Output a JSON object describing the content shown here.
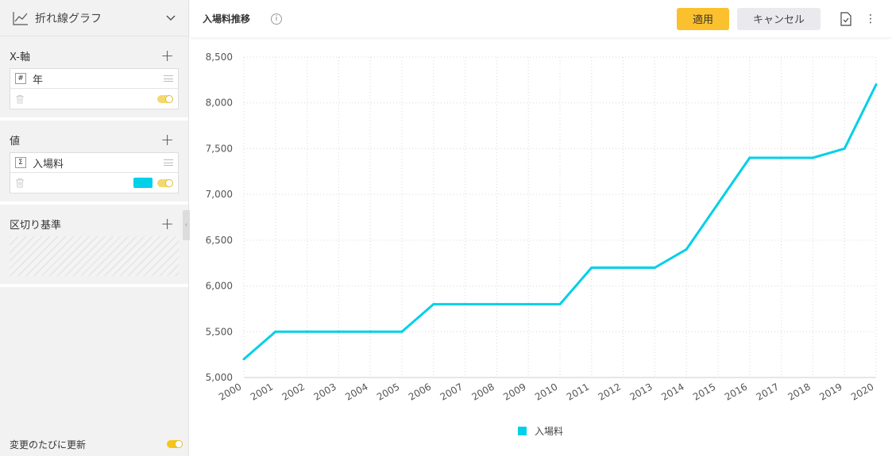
{
  "sidebar": {
    "chart_type": {
      "label": "折れ線グラフ",
      "icon": "line-chart-icon"
    },
    "x_axis": {
      "title": "X-軸",
      "field": {
        "badge": "#",
        "name": "年"
      }
    },
    "values": {
      "title": "値",
      "field": {
        "badge": "Σ",
        "name": "入場料",
        "color": "#00d0e8"
      }
    },
    "breakdown": {
      "title": "区切り基準"
    },
    "auto_update_label": "変更のたびに更新"
  },
  "topbar": {
    "title": "入場料推移",
    "apply_label": "適用",
    "cancel_label": "キャンセル"
  },
  "colors": {
    "accent": "#fbc02d",
    "series": "#00d0e8"
  },
  "chart_data": {
    "type": "line",
    "x": [
      "2000",
      "2001",
      "2002",
      "2003",
      "2004",
      "2005",
      "2006",
      "2007",
      "2008",
      "2009",
      "2010",
      "2011",
      "2012",
      "2013",
      "2014",
      "2015",
      "2016",
      "2017",
      "2018",
      "2019",
      "2020"
    ],
    "series": [
      {
        "name": "入場料",
        "values": [
          5200,
          5500,
          5500,
          5500,
          5500,
          5500,
          5800,
          5800,
          5800,
          5800,
          5800,
          6200,
          6200,
          6200,
          6400,
          6900,
          7400,
          7400,
          7400,
          7500,
          8200
        ]
      }
    ],
    "ylim": [
      5000,
      8500
    ],
    "yticks": [
      5000,
      5500,
      6000,
      6500,
      7000,
      7500,
      8000,
      8500
    ],
    "ytick_labels": [
      "5,000",
      "5,500",
      "6,000",
      "6,500",
      "7,000",
      "7,500",
      "8,000",
      "8,500"
    ],
    "grid": true,
    "legend": "bottom"
  }
}
